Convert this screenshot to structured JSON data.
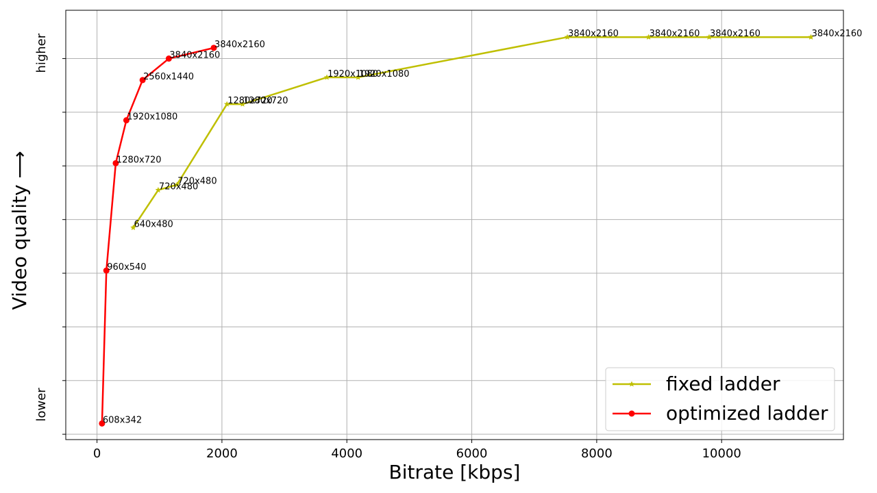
{
  "chart_data": {
    "type": "line",
    "xlabel": "Bitrate [kbps]",
    "ylabel": "Video quality ⟶",
    "y_tick_text": {
      "low": "lower",
      "high": "higher"
    },
    "xlim": [
      -500,
      11950
    ],
    "ylim": [
      0,
      8
    ],
    "x_ticks": [
      0,
      2000,
      4000,
      6000,
      8000,
      10000
    ],
    "x_tick_labels": [
      "0",
      "2000",
      "4000",
      "6000",
      "8000",
      "10000"
    ],
    "y_ticks": [
      0.1,
      1.1,
      2.1,
      3.1,
      4.1,
      5.1,
      6.1,
      7.1
    ],
    "grid": true,
    "legend_position": "bottom-right",
    "series": [
      {
        "name": "fixed ladder",
        "color": "#bfbf00",
        "marker": "star",
        "points": [
          {
            "x": 580,
            "y": 3.95,
            "label": "640x480"
          },
          {
            "x": 980,
            "y": 4.65,
            "label": "720x480"
          },
          {
            "x": 1280,
            "y": 4.75,
            "label": "720x480"
          },
          {
            "x": 2080,
            "y": 6.25,
            "label": "1280x720"
          },
          {
            "x": 2330,
            "y": 6.25,
            "label": "1280x720"
          },
          {
            "x": 3680,
            "y": 6.75,
            "label": "1920x1080"
          },
          {
            "x": 4180,
            "y": 6.75,
            "label": "1920x1080"
          },
          {
            "x": 7530,
            "y": 7.5,
            "label": "3840x2160"
          },
          {
            "x": 8830,
            "y": 7.5,
            "label": "3840x2160"
          },
          {
            "x": 9800,
            "y": 7.5,
            "label": "3840x2160"
          },
          {
            "x": 11430,
            "y": 7.5,
            "label": "3840x2160"
          }
        ]
      },
      {
        "name": "optimized ladder",
        "color": "#ff0000",
        "marker": "circle",
        "points": [
          {
            "x": 80,
            "y": 0.3,
            "label": "608x342"
          },
          {
            "x": 150,
            "y": 3.15,
            "label": "960x540"
          },
          {
            "x": 300,
            "y": 5.15,
            "label": "1280x720"
          },
          {
            "x": 470,
            "y": 5.95,
            "label": "1920x1080"
          },
          {
            "x": 730,
            "y": 6.7,
            "label": "2560x1440"
          },
          {
            "x": 1150,
            "y": 7.1,
            "label": "3840x2160"
          },
          {
            "x": 1870,
            "y": 7.3,
            "label": "3840x2160"
          }
        ]
      }
    ]
  }
}
